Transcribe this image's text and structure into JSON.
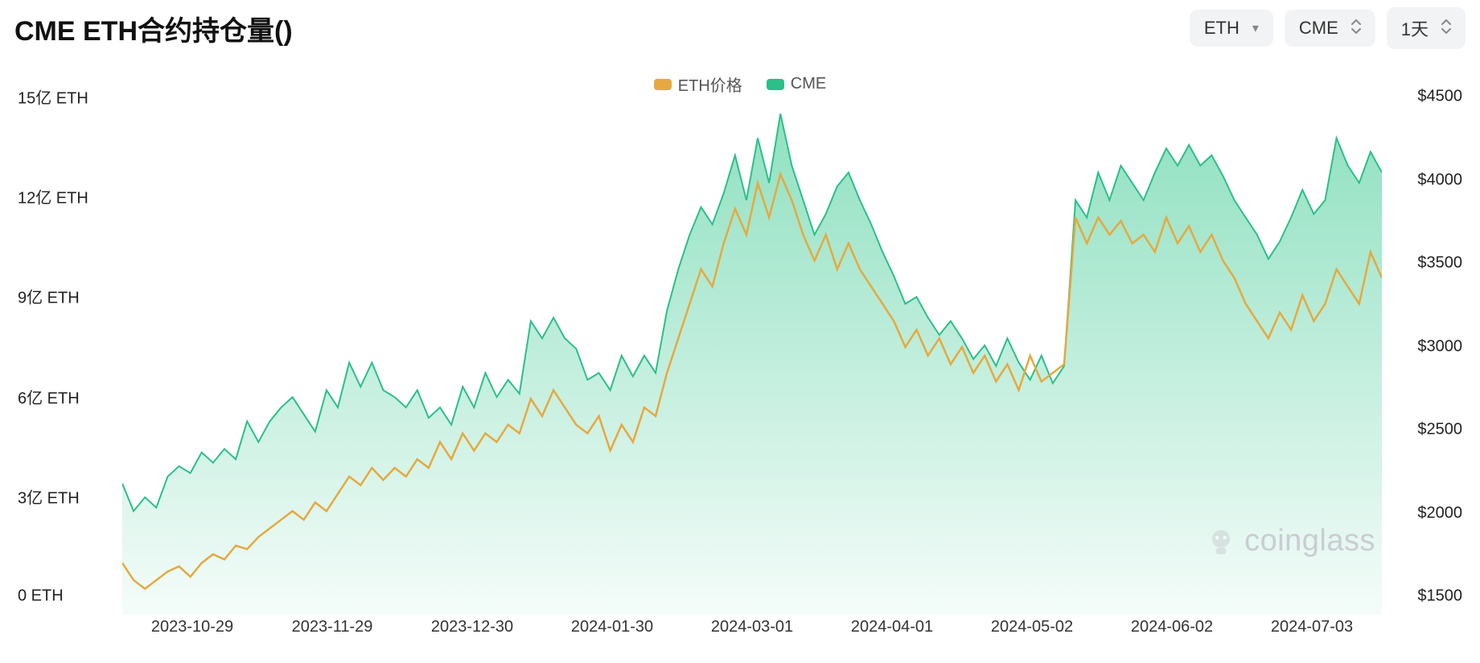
{
  "title": "CME ETH合约持仓量()",
  "controls": {
    "asset": "ETH",
    "exchange": "CME",
    "timeframe": "1天"
  },
  "legend": {
    "price_label": "ETH价格",
    "price_color": "#e5a93f",
    "oi_label": "CME",
    "oi_color": "#2bbf8a"
  },
  "chart": {
    "type": "dual-axis-area-line",
    "background_color": "#ffffff",
    "area": {
      "name": "CME",
      "stroke": "#2bbf8a",
      "fill_top": "rgba(51,199,142,0.55)",
      "fill_bottom": "rgba(51,199,142,0.05)",
      "stroke_width": 2
    },
    "line": {
      "name": "ETH价格",
      "stroke": "#e5a93f",
      "stroke_width": 2.5
    },
    "y_left": {
      "label_suffix": " ETH",
      "min": 0,
      "max": 15,
      "ticks": [
        "15亿 ETH",
        "12亿 ETH",
        "9亿 ETH",
        "6亿 ETH",
        "3亿 ETH",
        "0 ETH"
      ]
    },
    "y_right": {
      "prefix": "$",
      "min": 1500,
      "max": 4500,
      "ticks": [
        "$4500",
        "$4000",
        "$3500",
        "$3000",
        "$2500",
        "$2000",
        "$1500"
      ]
    },
    "x_ticks": [
      "2023-10-29",
      "2023-11-29",
      "2023-12-30",
      "2024-01-30",
      "2024-03-01",
      "2024-04-01",
      "2024-05-02",
      "2024-06-02",
      "2024-07-03"
    ],
    "fontsize_axis": 20,
    "fontsize_title": 34,
    "cme_values_yi_eth": [
      3.8,
      3.0,
      3.4,
      3.1,
      4.0,
      4.3,
      4.1,
      4.7,
      4.4,
      4.8,
      4.5,
      5.6,
      5.0,
      5.6,
      6.0,
      6.3,
      5.8,
      5.3,
      6.5,
      6.0,
      7.3,
      6.6,
      7.3,
      6.5,
      6.3,
      6.0,
      6.5,
      5.7,
      6.0,
      5.5,
      6.6,
      6.0,
      7.0,
      6.3,
      6.8,
      6.4,
      8.5,
      8.0,
      8.6,
      8.0,
      7.7,
      6.8,
      7.0,
      6.5,
      7.5,
      6.9,
      7.5,
      7.0,
      8.8,
      10.0,
      11.0,
      11.8,
      11.3,
      12.2,
      13.3,
      12.0,
      13.8,
      12.5,
      14.5,
      13.0,
      12.0,
      11.0,
      11.6,
      12.4,
      12.8,
      12.0,
      11.3,
      10.5,
      9.8,
      9.0,
      9.2,
      8.6,
      8.1,
      8.5,
      8.0,
      7.4,
      7.8,
      7.2,
      8.0,
      7.3,
      6.8,
      7.5,
      6.7,
      7.2,
      12.0,
      11.5,
      12.8,
      12.0,
      13.0,
      12.5,
      12.0,
      12.8,
      13.5,
      13.0,
      13.6,
      13.0,
      13.3,
      12.7,
      12.0,
      11.5,
      11.0,
      10.3,
      10.8,
      11.5,
      12.3,
      11.6,
      12.0,
      13.8,
      13.0,
      12.5,
      13.4,
      12.8
    ],
    "price_values_usd": [
      1800,
      1700,
      1650,
      1700,
      1750,
      1780,
      1720,
      1800,
      1850,
      1820,
      1900,
      1880,
      1950,
      2000,
      2050,
      2100,
      2050,
      2150,
      2100,
      2200,
      2300,
      2250,
      2350,
      2280,
      2350,
      2300,
      2400,
      2350,
      2500,
      2400,
      2550,
      2450,
      2550,
      2500,
      2600,
      2550,
      2750,
      2650,
      2800,
      2700,
      2600,
      2550,
      2650,
      2450,
      2600,
      2500,
      2700,
      2650,
      2900,
      3100,
      3300,
      3500,
      3400,
      3650,
      3850,
      3700,
      4000,
      3800,
      4050,
      3900,
      3700,
      3550,
      3700,
      3500,
      3650,
      3500,
      3400,
      3300,
      3200,
      3050,
      3150,
      3000,
      3100,
      2950,
      3050,
      2900,
      3000,
      2850,
      2950,
      2800,
      3000,
      2850,
      2900,
      2950,
      3800,
      3650,
      3800,
      3700,
      3780,
      3650,
      3700,
      3600,
      3800,
      3650,
      3750,
      3600,
      3700,
      3550,
      3450,
      3300,
      3200,
      3100,
      3250,
      3150,
      3350,
      3200,
      3300,
      3500,
      3400,
      3300,
      3600,
      3450
    ]
  },
  "watermark": "coinglass"
}
